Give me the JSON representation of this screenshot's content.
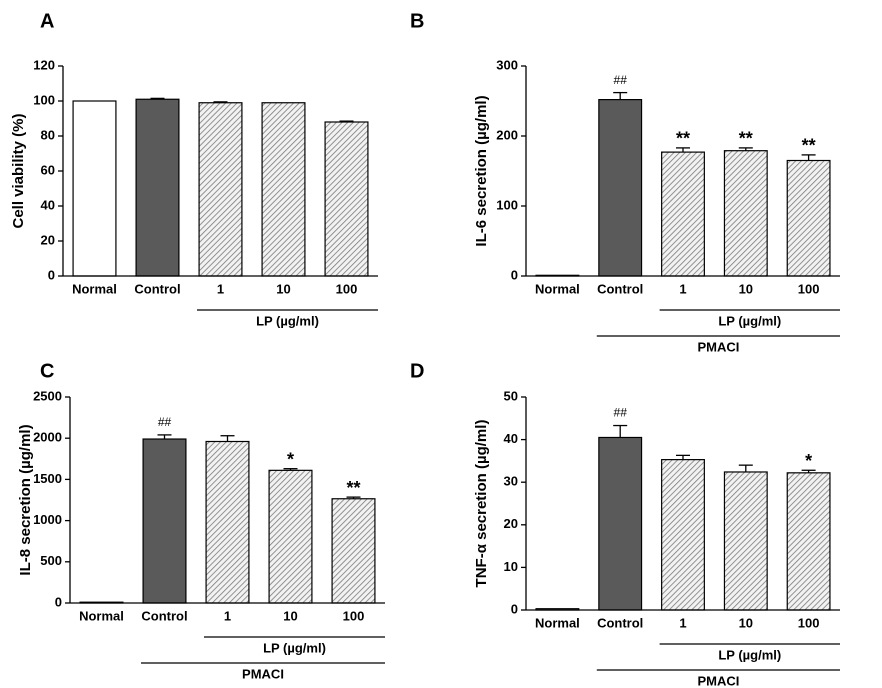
{
  "chart_data": [
    {
      "type": "bar",
      "panel": "A",
      "ylabel": "Cell viability (%)",
      "categories": [
        "Normal",
        "Control",
        "1",
        "10",
        "100"
      ],
      "values": [
        100,
        101,
        99,
        99,
        88
      ],
      "errors": [
        0,
        0.5,
        0.5,
        0,
        0.5
      ],
      "annotations": [
        null,
        null,
        null,
        null,
        null
      ],
      "bar_fills": [
        "#ffffff",
        "#5a5a5a",
        "hatch",
        "hatch",
        "hatch"
      ],
      "groups": [
        {
          "label": "LP (µg/ml)",
          "from": 2,
          "to": 4
        }
      ],
      "ylim": [
        0,
        120
      ],
      "yticks": [
        0,
        20,
        40,
        60,
        80,
        100,
        120
      ]
    },
    {
      "type": "bar",
      "panel": "B",
      "ylabel": "IL-6 secretion (µg/ml)",
      "categories": [
        "Normal",
        "Control",
        "1",
        "10",
        "100"
      ],
      "values": [
        1,
        252,
        177,
        179,
        165
      ],
      "errors": [
        0,
        10,
        6,
        4,
        8
      ],
      "annotations": [
        null,
        "##",
        "**",
        "**",
        "**"
      ],
      "bar_fills": [
        "#ffffff",
        "#5a5a5a",
        "hatch",
        "hatch",
        "hatch"
      ],
      "groups": [
        {
          "label": "LP (µg/ml)",
          "from": 2,
          "to": 4
        },
        {
          "label": "PMACI",
          "from": 1,
          "to": 4
        }
      ],
      "ylim": [
        0,
        300
      ],
      "yticks": [
        0,
        100,
        200,
        300
      ]
    },
    {
      "type": "bar",
      "panel": "C",
      "ylabel": "IL-8 secretion (µg/ml)",
      "categories": [
        "Normal",
        "Control",
        "1",
        "10",
        "100"
      ],
      "values": [
        10,
        1990,
        1960,
        1610,
        1265
      ],
      "errors": [
        0,
        50,
        70,
        20,
        20
      ],
      "annotations": [
        null,
        "##",
        null,
        "*",
        "**"
      ],
      "bar_fills": [
        "#ffffff",
        "#5a5a5a",
        "hatch",
        "hatch",
        "hatch"
      ],
      "groups": [
        {
          "label": "LP (µg/ml)",
          "from": 2,
          "to": 4
        },
        {
          "label": "PMACI",
          "from": 1,
          "to": 4
        }
      ],
      "ylim": [
        0,
        2500
      ],
      "yticks": [
        0,
        500,
        1000,
        1500,
        2000,
        2500
      ]
    },
    {
      "type": "bar",
      "panel": "D",
      "ylabel": "TNF-α secretion (µg/ml)",
      "categories": [
        "Normal",
        "Control",
        "1",
        "10",
        "100"
      ],
      "values": [
        0.3,
        40.5,
        35.3,
        32.4,
        32.2
      ],
      "errors": [
        0,
        2.8,
        1,
        1.6,
        0.6
      ],
      "annotations": [
        null,
        "##",
        null,
        null,
        "*"
      ],
      "bar_fills": [
        "#ffffff",
        "#5a5a5a",
        "hatch",
        "hatch",
        "hatch"
      ],
      "groups": [
        {
          "label": "LP (µg/ml)",
          "from": 2,
          "to": 4
        },
        {
          "label": "PMACI",
          "from": 1,
          "to": 4
        }
      ],
      "ylim": [
        0,
        50
      ],
      "yticks": [
        0,
        10,
        20,
        30,
        40,
        50
      ]
    }
  ]
}
